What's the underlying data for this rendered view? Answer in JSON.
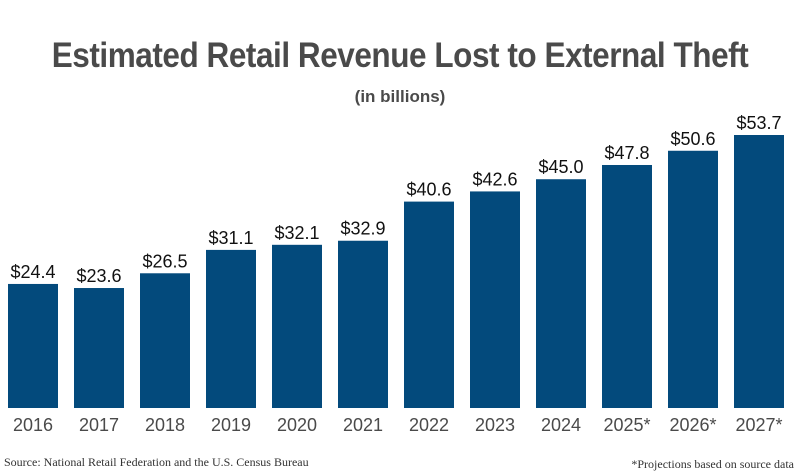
{
  "chart_data": {
    "type": "bar",
    "title": "Estimated Retail Revenue Lost to External Theft",
    "subtitle": "(in billions)",
    "xlabel": "",
    "ylabel": "",
    "categories": [
      "2016",
      "2017",
      "2018",
      "2019",
      "2020",
      "2021",
      "2022",
      "2023",
      "2024",
      "2025*",
      "2026*",
      "2027*"
    ],
    "values": [
      24.4,
      23.6,
      26.5,
      31.1,
      32.1,
      32.9,
      40.6,
      42.6,
      45.0,
      47.8,
      50.6,
      53.7
    ],
    "value_labels": [
      "$24.4",
      "$23.6",
      "$26.5",
      "$31.1",
      "$32.1",
      "$32.9",
      "$40.6",
      "$42.6",
      "$45.0",
      "$47.8",
      "$50.6",
      "$53.7"
    ],
    "ylim": [
      0,
      53.7
    ],
    "grid": false,
    "legend": "none",
    "bar_color": "#034a7c",
    "source": "Source: National Retail Federation and the U.S. Census Bureau",
    "note": "*Projections based on source data"
  }
}
